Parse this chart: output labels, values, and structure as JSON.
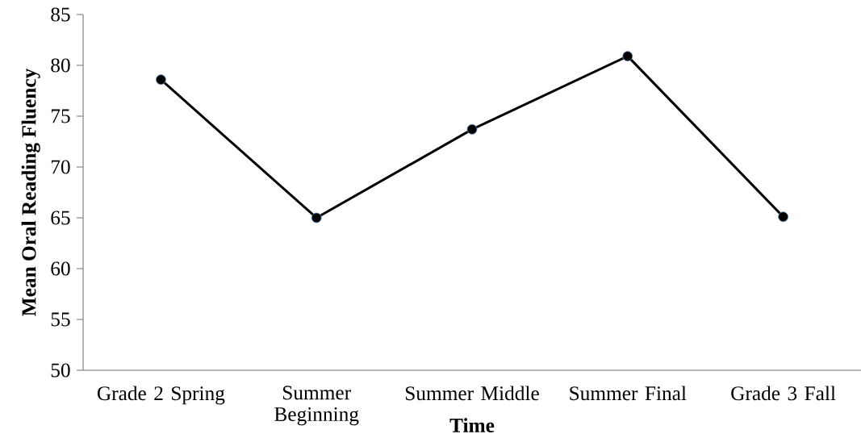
{
  "chart_data": {
    "type": "line",
    "xlabel": "Time",
    "ylabel": "Mean Oral Reading Fluency",
    "categories": [
      "Grade 2 Spring",
      "Summer Beginning",
      "Summer Middle",
      "Summer Final",
      "Grade 3 Fall"
    ],
    "values": [
      78.6,
      65.0,
      73.7,
      80.9,
      65.1
    ],
    "color": "#000000",
    "marker": "circle",
    "ylim": [
      50,
      85
    ],
    "yticks": [
      50,
      55,
      60,
      65,
      70,
      75,
      80,
      85
    ]
  }
}
